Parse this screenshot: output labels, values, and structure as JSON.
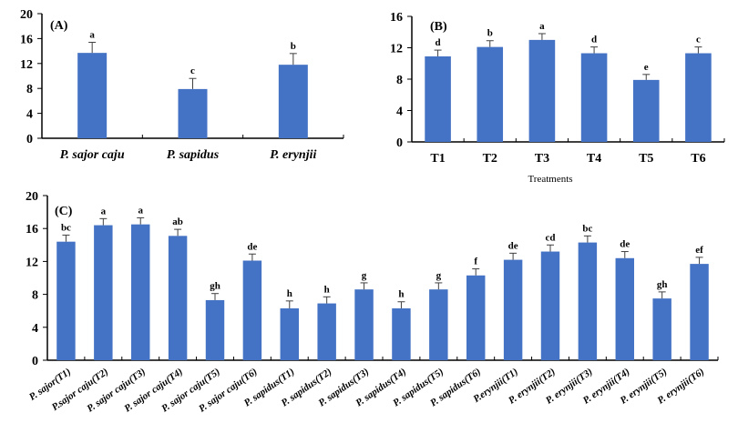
{
  "colors": {
    "bar": "#4472c4",
    "axis": "#000000",
    "error": "#404040"
  },
  "chart_data": [
    {
      "type": "bar",
      "panel": "(A)",
      "title": "",
      "xlabel": "",
      "ylabel": "",
      "ylim": [
        0,
        20
      ],
      "yticks": [
        "0",
        "4",
        "8",
        "12",
        "16",
        "20"
      ],
      "categories": [
        "P. sajor caju",
        "P. sapidus",
        "P. erynjii"
      ],
      "values": [
        13.7,
        7.9,
        11.8
      ],
      "errors": [
        1.7,
        1.7,
        1.8
      ],
      "significance": [
        "a",
        "c",
        "b"
      ]
    },
    {
      "type": "bar",
      "panel": "(B)",
      "title": "",
      "xlabel": "Treatments",
      "ylabel": "",
      "ylim": [
        0,
        16
      ],
      "yticks": [
        "0",
        "4",
        "8",
        "12",
        "16"
      ],
      "categories": [
        "T1",
        "T2",
        "T3",
        "T4",
        "T5",
        "T6"
      ],
      "values": [
        10.9,
        12.1,
        13.0,
        11.3,
        7.9,
        11.3
      ],
      "errors": [
        0.8,
        0.8,
        0.8,
        0.8,
        0.7,
        0.8
      ],
      "significance": [
        "d",
        "b",
        "a",
        "d",
        "e",
        "c"
      ]
    },
    {
      "type": "bar",
      "panel": "(C)",
      "title": "",
      "xlabel": "",
      "ylabel": "",
      "ylim": [
        0,
        20
      ],
      "yticks": [
        "0",
        "4",
        "8",
        "12",
        "16",
        "20"
      ],
      "categories": [
        "P. sajor(T1)",
        "P.sajor caju(T2)",
        "P. sajor caju(T3)",
        "P. sajor caju(T4)",
        "P. sajor caju(T5)",
        "P. sajor caju(T6)",
        "P. sapidus(T1)",
        "P. sapidus(T2)",
        "P. sapidus(T3)",
        "P. sapidus(T4)",
        "P. sapidus(T5)",
        "P. sapidus(T6)",
        "P.erynjii(T1)",
        "P. erynjii(T2)",
        "P. erynjii(T3)",
        "P. erynjii(T4)",
        "P. erynjii(T5)",
        "P. erynjii(T6)"
      ],
      "values": [
        14.4,
        16.4,
        16.5,
        15.1,
        7.3,
        12.1,
        6.3,
        6.9,
        8.6,
        6.3,
        8.6,
        10.3,
        12.2,
        13.2,
        14.3,
        12.4,
        7.5,
        11.7
      ],
      "errors": [
        0.8,
        0.8,
        0.8,
        0.8,
        0.8,
        0.8,
        0.9,
        0.8,
        0.8,
        0.8,
        0.8,
        0.8,
        0.8,
        0.8,
        0.8,
        0.8,
        0.8,
        0.8
      ],
      "significance": [
        "bc",
        "a",
        "a",
        "ab",
        "gh",
        "de",
        "h",
        "h",
        "g",
        "h",
        "g",
        "f",
        "de",
        "cd",
        "bc",
        "de",
        "gh",
        "ef"
      ]
    }
  ]
}
